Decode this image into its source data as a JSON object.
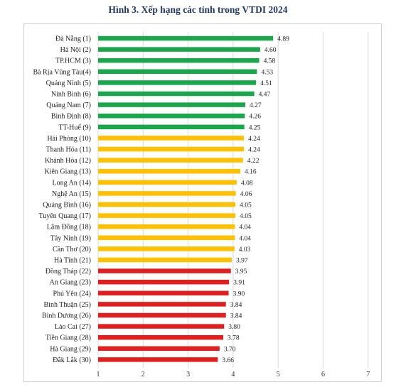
{
  "chart_data": {
    "type": "bar",
    "orientation": "horizontal",
    "title": "Hình  3. Xếp hạng các tỉnh trong VTDI 2024",
    "xlabel": "",
    "ylabel": "",
    "xlim": [
      1,
      7
    ],
    "xticks": [
      "1",
      "2",
      "3",
      "4",
      "5",
      "6",
      "7"
    ],
    "grid": true,
    "colors": {
      "green": "#1aa64a",
      "yellow": "#ffc000",
      "red": "#e31e1e"
    },
    "categories": [
      "Đà Nẵng (1)",
      "Hà Nội (2)",
      "TP.HCM (3)",
      "Bà Rịa Vũng Tàu(4)",
      "Quảng Ninh (5)",
      "Ninh Bình (6)",
      "Quảng Nam (7)",
      "Bình Định (8)",
      "TT-Huế (9)",
      "Hải Phòng (10)",
      "Thanh Hóa (11)",
      "Khánh Hòa (12)",
      "Kiên Giang (13)",
      "Long An (14)",
      "Nghệ An (15)",
      "Quảng Bình (16)",
      "Tuyên Quang (17)",
      "Lâm Đồng (18)",
      "Tây Ninh (19)",
      "Cần Thơ (20)",
      "Hà Tĩnh (21)",
      "Đồng Tháp (22)",
      "An Giang (23)",
      "Phú Yên (24)",
      "Bình Thuận (25)",
      "Bình Dương (26)",
      "Lào Cai (27)",
      "Tiền Giang (28)",
      "Hà Giang (29)",
      "Đắk Lắk (30)"
    ],
    "values": [
      4.89,
      4.6,
      4.58,
      4.53,
      4.51,
      4.47,
      4.27,
      4.26,
      4.25,
      4.24,
      4.24,
      4.22,
      4.16,
      4.08,
      4.06,
      4.05,
      4.05,
      4.04,
      4.04,
      4.03,
      3.97,
      3.95,
      3.91,
      3.9,
      3.84,
      3.84,
      3.8,
      3.78,
      3.7,
      3.66
    ],
    "value_labels": [
      "4.89",
      "4.60",
      "4.58",
      "4.53",
      "4.51",
      "4.47",
      "4.27",
      "4.26",
      "4.25",
      "4.24",
      "4.24",
      "4.22",
      "4.16",
      "4.08",
      "4.06",
      "4.05",
      "4.05",
      "4.04",
      "4.04",
      "4.03",
      "3.97",
      "3.95",
      "3.91",
      "3.90",
      "3.84",
      "3.84",
      "3.80",
      "3.78",
      "3.70",
      "3.66"
    ],
    "bar_colors": [
      "green",
      "green",
      "green",
      "green",
      "green",
      "green",
      "green",
      "green",
      "green",
      "yellow",
      "yellow",
      "yellow",
      "yellow",
      "yellow",
      "yellow",
      "yellow",
      "yellow",
      "yellow",
      "yellow",
      "yellow",
      "yellow",
      "red",
      "red",
      "red",
      "red",
      "red",
      "red",
      "red",
      "red",
      "red"
    ]
  }
}
